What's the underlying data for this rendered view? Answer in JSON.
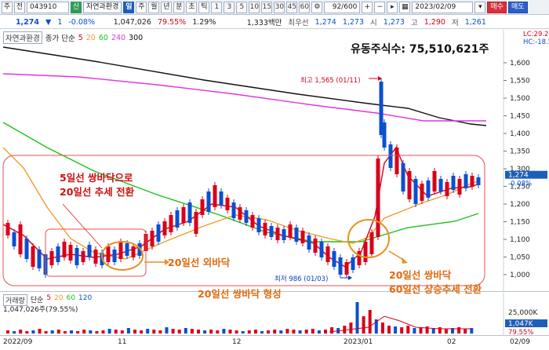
{
  "toolbar": {
    "market": "주",
    "type": "전",
    "code": "043910",
    "badge": "신",
    "stock_name": "자연과환경",
    "chart_mode": "일",
    "periods": [
      "주",
      "월",
      "년",
      "분",
      "초",
      "틱"
    ],
    "intervals": [
      "1",
      "3",
      "5",
      "10",
      "15",
      "30",
      "45",
      "60"
    ],
    "counter": "92/600",
    "date": "2023/02/09",
    "buy": "매수",
    "sell": "매도"
  },
  "quote": {
    "price": "1,274",
    "change_arrow": "▼",
    "change": "1",
    "change_pct": "-0.08%",
    "volume": "1,047,026",
    "volume_ratio": "79.55%",
    "turnover": "1.29%",
    "amount": "1,333백만",
    "priority_label": "최우선",
    "bid": "1,274",
    "ask": "1,273",
    "open_label": "시",
    "open": "1,273",
    "high_label": "고",
    "high": "1,290",
    "low_label": "저",
    "low": "1,261"
  },
  "price_panel": {
    "name_tag": "자연과환경",
    "legend_prefix": "종가 단순",
    "ma": [
      {
        "period": "5",
        "color": "#d8001a"
      },
      {
        "period": "20",
        "color": "#f59a28"
      },
      {
        "period": "60",
        "color": "#19c21b"
      },
      {
        "period": "240",
        "color": "#e033e0"
      },
      {
        "period": "300",
        "color": "#111111"
      }
    ],
    "float_shares": "유동주식수: 75,510,621주",
    "lc": "LC:29.21",
    "hc": "HC:-18.59",
    "high_marker": "최고 1,565 (01/11)",
    "low_marker": "최저 986 (01/03)",
    "current_price_label": "1,274",
    "current_change_label": "-0.08%",
    "y_ticks": [
      "1,600",
      "1,550",
      "1,500",
      "1,450",
      "1,400",
      "1,350",
      "1,300",
      "1,250",
      "1,200",
      "1,150",
      "1,100",
      "1,050",
      "1,000"
    ],
    "annotations": {
      "a1_line1": "5일선 쌍바닥으로",
      "a1_line2": "20일선 추세 전환",
      "a2": "20일선 외바닥",
      "a3": "20일선 쌍바닥 형성",
      "a4_line1": "20일선 쌍바닥",
      "a4_line2": "60일선 상승추세 전환"
    }
  },
  "volume_panel": {
    "name_tag": "거래량",
    "legend_prefix": "단순",
    "ma": [
      {
        "period": "5",
        "color": "#d8001a"
      },
      {
        "period": "20",
        "color": "#f59a28"
      },
      {
        "period": "60",
        "color": "#19c21b"
      },
      {
        "period": "120",
        "color": "#0b4fd0"
      }
    ],
    "current": "1,047,026주(79.55%)",
    "y_ticks": [
      "25,000K",
      "1,047K",
      "79.55%"
    ]
  },
  "x_axis": [
    "2022/09",
    "11",
    "12",
    "2023/01",
    "02",
    "02/09"
  ],
  "colors": {
    "up": "#d8001a",
    "down": "#0b4fd0",
    "annotation": "#e06a10"
  }
}
